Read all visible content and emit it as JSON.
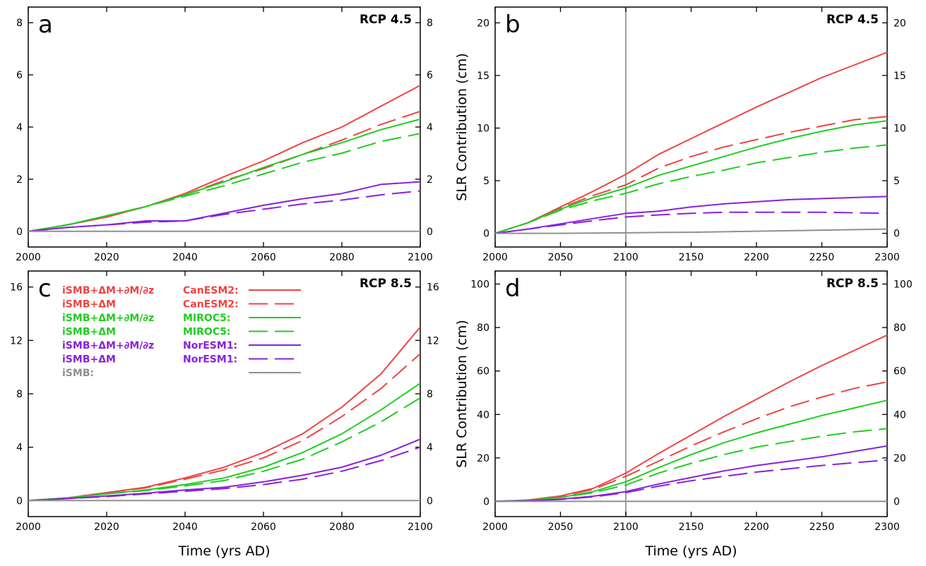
{
  "colors": {
    "canesm2": "#ee4444",
    "miroc5": "#22cc22",
    "noresm1": "#8822dd",
    "ismb": "#909090",
    "vline": "#a0a0a0"
  },
  "chart_data": [
    {
      "type": "line",
      "panel": "a",
      "scenario": "RCP 4.5",
      "xlabel": "",
      "ylabel": "",
      "xlim": [
        2000,
        2100
      ],
      "ylim": [
        -0.6,
        8.6
      ],
      "xticks": [
        "2000",
        "2020",
        "2040",
        "2060",
        "2080",
        "2100"
      ],
      "yticks": [
        "0",
        "2",
        "4",
        "6",
        "8"
      ],
      "vline": null,
      "x": [
        2000,
        2010,
        2020,
        2030,
        2040,
        2050,
        2060,
        2070,
        2080,
        2090,
        2100
      ],
      "series": [
        {
          "id": "canesm2-full",
          "model": "canesm2",
          "dash": "solid",
          "values": [
            0,
            0.25,
            0.55,
            0.95,
            1.45,
            2.1,
            2.7,
            3.4,
            4.0,
            4.8,
            5.6
          ]
        },
        {
          "id": "canesm2-dm",
          "model": "canesm2",
          "dash": "dashed",
          "values": [
            0,
            0.25,
            0.55,
            0.95,
            1.4,
            1.95,
            2.4,
            2.95,
            3.5,
            4.1,
            4.6
          ]
        },
        {
          "id": "miroc5-full",
          "model": "miroc5",
          "dash": "solid",
          "values": [
            0,
            0.25,
            0.6,
            0.95,
            1.4,
            1.9,
            2.45,
            2.95,
            3.4,
            3.9,
            4.3
          ]
        },
        {
          "id": "miroc5-dm",
          "model": "miroc5",
          "dash": "dashed",
          "values": [
            0,
            0.25,
            0.6,
            0.95,
            1.35,
            1.75,
            2.2,
            2.65,
            3.0,
            3.45,
            3.75
          ]
        },
        {
          "id": "noresm1-full",
          "model": "noresm1",
          "dash": "solid",
          "values": [
            0,
            0.15,
            0.25,
            0.4,
            0.4,
            0.7,
            1.0,
            1.25,
            1.45,
            1.8,
            1.9
          ]
        },
        {
          "id": "noresm1-dm",
          "model": "noresm1",
          "dash": "dashed",
          "values": [
            0,
            0.15,
            0.25,
            0.35,
            0.4,
            0.65,
            0.85,
            1.05,
            1.2,
            1.4,
            1.55
          ]
        },
        {
          "id": "ismb",
          "model": "ismb",
          "dash": "solid",
          "values": [
            0,
            0,
            0,
            0,
            0,
            0,
            0,
            0,
            0,
            0,
            0
          ]
        }
      ]
    },
    {
      "type": "line",
      "panel": "b",
      "scenario": "RCP 4.5",
      "xlabel": "",
      "ylabel": "SLR Contribution (cm)",
      "xlim": [
        2000,
        2300
      ],
      "ylim": [
        -1.3,
        21.5
      ],
      "xticks": [
        "2000",
        "2050",
        "2100",
        "2150",
        "2200",
        "2250",
        "2300"
      ],
      "yticks": [
        "0",
        "5",
        "10",
        "15",
        "20"
      ],
      "vline": 2100,
      "x": [
        2000,
        2025,
        2050,
        2075,
        2100,
        2125,
        2150,
        2175,
        2200,
        2225,
        2250,
        2275,
        2300
      ],
      "series": [
        {
          "id": "canesm2-full",
          "model": "canesm2",
          "dash": "solid",
          "values": [
            0,
            1.0,
            2.5,
            4.0,
            5.6,
            7.5,
            9.0,
            10.5,
            12.0,
            13.4,
            14.8,
            16.0,
            17.2
          ]
        },
        {
          "id": "canesm2-dm",
          "model": "canesm2",
          "dash": "dashed",
          "values": [
            0,
            1.0,
            2.4,
            3.6,
            4.6,
            6.2,
            7.3,
            8.2,
            8.9,
            9.6,
            10.2,
            10.8,
            11.1
          ]
        },
        {
          "id": "miroc5-full",
          "model": "miroc5",
          "dash": "solid",
          "values": [
            0,
            1.0,
            2.3,
            3.4,
            4.3,
            5.5,
            6.4,
            7.3,
            8.2,
            9.0,
            9.7,
            10.3,
            10.7
          ]
        },
        {
          "id": "miroc5-dm",
          "model": "miroc5",
          "dash": "dashed",
          "values": [
            0,
            1.0,
            2.2,
            3.1,
            3.8,
            4.7,
            5.4,
            6.0,
            6.7,
            7.2,
            7.7,
            8.1,
            8.4
          ]
        },
        {
          "id": "noresm1-full",
          "model": "noresm1",
          "dash": "solid",
          "values": [
            0,
            0.4,
            0.9,
            1.4,
            1.9,
            2.1,
            2.5,
            2.8,
            3.0,
            3.2,
            3.3,
            3.4,
            3.5
          ]
        },
        {
          "id": "noresm1-dm",
          "model": "noresm1",
          "dash": "dashed",
          "values": [
            0,
            0.4,
            0.8,
            1.2,
            1.55,
            1.75,
            1.9,
            2.0,
            2.0,
            2.0,
            2.0,
            1.95,
            1.9
          ]
        },
        {
          "id": "ismb",
          "model": "ismb",
          "dash": "solid",
          "values": [
            0,
            0,
            0,
            0.02,
            0.05,
            0.08,
            0.1,
            0.15,
            0.2,
            0.25,
            0.3,
            0.35,
            0.4
          ]
        }
      ]
    },
    {
      "type": "line",
      "panel": "c",
      "scenario": "RCP 8.5",
      "xlabel": "Time (yrs AD)",
      "ylabel": "",
      "xlim": [
        2000,
        2100
      ],
      "ylim": [
        -1.2,
        17.2
      ],
      "xticks": [
        "2000",
        "2020",
        "2040",
        "2060",
        "2080",
        "2100"
      ],
      "yticks": [
        "0",
        "4",
        "8",
        "12",
        "16"
      ],
      "vline": null,
      "x": [
        2000,
        2010,
        2020,
        2030,
        2040,
        2050,
        2060,
        2070,
        2080,
        2090,
        2100
      ],
      "series": [
        {
          "id": "canesm2-full",
          "model": "canesm2",
          "dash": "solid",
          "values": [
            0,
            0.2,
            0.6,
            1.0,
            1.7,
            2.5,
            3.6,
            5.0,
            7.0,
            9.5,
            13.0
          ]
        },
        {
          "id": "canesm2-dm",
          "model": "canesm2",
          "dash": "dashed",
          "values": [
            0,
            0.2,
            0.6,
            0.95,
            1.6,
            2.3,
            3.2,
            4.5,
            6.3,
            8.4,
            11.0
          ]
        },
        {
          "id": "miroc5-full",
          "model": "miroc5",
          "dash": "solid",
          "values": [
            0,
            0.2,
            0.5,
            0.8,
            1.2,
            1.7,
            2.5,
            3.6,
            5.0,
            6.8,
            8.8
          ]
        },
        {
          "id": "miroc5-dm",
          "model": "miroc5",
          "dash": "dashed",
          "values": [
            0,
            0.2,
            0.5,
            0.75,
            1.1,
            1.5,
            2.2,
            3.1,
            4.4,
            5.9,
            7.7
          ]
        },
        {
          "id": "noresm1-full",
          "model": "noresm1",
          "dash": "solid",
          "values": [
            0,
            0.15,
            0.35,
            0.55,
            0.8,
            1.0,
            1.4,
            1.9,
            2.5,
            3.4,
            4.6
          ]
        },
        {
          "id": "noresm1-dm",
          "model": "noresm1",
          "dash": "dashed",
          "values": [
            0,
            0.15,
            0.3,
            0.5,
            0.7,
            0.9,
            1.2,
            1.6,
            2.2,
            3.0,
            4.0
          ]
        },
        {
          "id": "ismb",
          "model": "ismb",
          "dash": "solid",
          "values": [
            0,
            0,
            0,
            0,
            0,
            0,
            0,
            0,
            0,
            0,
            0
          ]
        }
      ]
    },
    {
      "type": "line",
      "panel": "d",
      "scenario": "RCP 8.5",
      "xlabel": "Time (yrs AD)",
      "ylabel": "SLR Contribution (cm)",
      "xlim": [
        2000,
        2300
      ],
      "ylim": [
        -7,
        106
      ],
      "xticks": [
        "2000",
        "2050",
        "2100",
        "2150",
        "2200",
        "2250",
        "2300"
      ],
      "yticks": [
        "0",
        "20",
        "40",
        "60",
        "80",
        "100"
      ],
      "vline": 2100,
      "x": [
        2000,
        2025,
        2050,
        2075,
        2100,
        2125,
        2150,
        2175,
        2200,
        2225,
        2250,
        2275,
        2300
      ],
      "series": [
        {
          "id": "canesm2-full",
          "model": "canesm2",
          "dash": "solid",
          "values": [
            0,
            0.6,
            2.5,
            6.0,
            13.0,
            22.0,
            30.5,
            39.0,
            47.0,
            55.0,
            62.5,
            69.5,
            76.5
          ]
        },
        {
          "id": "canesm2-dm",
          "model": "canesm2",
          "dash": "dashed",
          "values": [
            0,
            0.6,
            2.3,
            5.5,
            11.5,
            18.5,
            25.5,
            32.0,
            38.0,
            43.5,
            48.0,
            52.0,
            55.0
          ]
        },
        {
          "id": "miroc5-full",
          "model": "miroc5",
          "dash": "solid",
          "values": [
            0,
            0.5,
            1.8,
            4.5,
            9.0,
            15.5,
            21.5,
            27.0,
            31.5,
            35.5,
            39.5,
            43.0,
            46.5
          ]
        },
        {
          "id": "miroc5-dm",
          "model": "miroc5",
          "dash": "dashed",
          "values": [
            0,
            0.5,
            1.7,
            4.0,
            7.5,
            13.0,
            17.5,
            21.5,
            25.0,
            27.5,
            30.0,
            32.0,
            33.5
          ]
        },
        {
          "id": "noresm1-full",
          "model": "noresm1",
          "dash": "solid",
          "values": [
            0,
            0.3,
            1.0,
            2.4,
            4.5,
            8.0,
            11.0,
            14.0,
            16.5,
            18.5,
            20.5,
            23.0,
            25.5
          ]
        },
        {
          "id": "noresm1-dm",
          "model": "noresm1",
          "dash": "dashed",
          "values": [
            0,
            0.3,
            0.9,
            2.1,
            4.0,
            7.0,
            9.5,
            11.5,
            13.5,
            15.0,
            16.5,
            17.8,
            19.0
          ]
        },
        {
          "id": "ismb",
          "model": "ismb",
          "dash": "solid",
          "values": [
            0,
            0,
            0,
            0,
            0,
            0,
            0,
            0,
            0,
            0,
            0,
            0,
            0
          ]
        }
      ]
    }
  ],
  "legend": [
    {
      "term": "iSMB+ΔM+∂M/∂z",
      "model_label": "CanESM2:",
      "model": "canesm2",
      "dash": "solid"
    },
    {
      "term": "iSMB+ΔM",
      "model_label": "CanESM2:",
      "model": "canesm2",
      "dash": "dashed"
    },
    {
      "term": "iSMB+ΔM+∂M/∂z",
      "model_label": "MIROC5:",
      "model": "miroc5",
      "dash": "solid"
    },
    {
      "term": "iSMB+ΔM",
      "model_label": "MIROC5:",
      "model": "miroc5",
      "dash": "dashed"
    },
    {
      "term": "iSMB+ΔM+∂M/∂z",
      "model_label": "NorESM1:",
      "model": "noresm1",
      "dash": "solid"
    },
    {
      "term": "iSMB+ΔM",
      "model_label": "NorESM1:",
      "model": "noresm1",
      "dash": "dashed"
    },
    {
      "term": "iSMB:",
      "model_label": "",
      "model": "ismb",
      "dash": "solid"
    }
  ]
}
